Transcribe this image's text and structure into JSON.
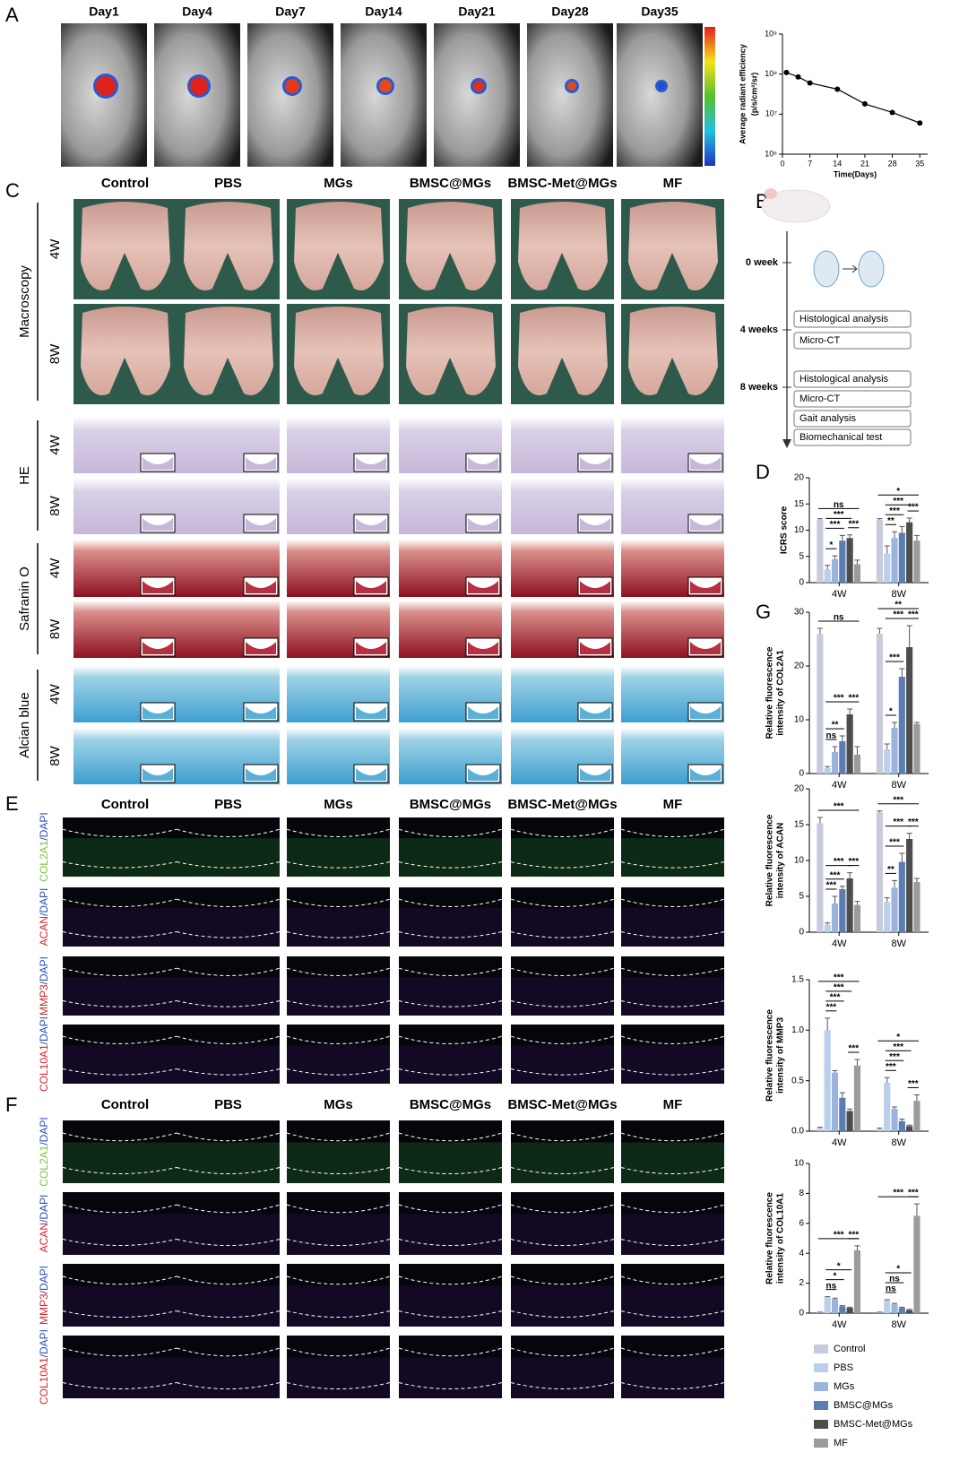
{
  "panel_labels": [
    "A",
    "B",
    "C",
    "D",
    "E",
    "F",
    "G"
  ],
  "groups": [
    {
      "name": "Control",
      "color": "#c8cbdc"
    },
    {
      "name": "PBS",
      "color": "#b9d0ea"
    },
    {
      "name": "MGs",
      "color": "#9cb4db"
    },
    {
      "name": "BMSC@MGs",
      "color": "#5a7db3"
    },
    {
      "name": "BMSC-Met@MGs",
      "color": "#4d4d4d"
    },
    {
      "name": "MF",
      "color": "#9b9b9b"
    }
  ],
  "imaging": {
    "days": [
      "Day1",
      "Day4",
      "Day7",
      "Day14",
      "Day21",
      "Day28",
      "Day35"
    ]
  },
  "histology": {
    "rows": [
      "Macroscopy",
      "HE",
      "Safranin O",
      "Alcian blue"
    ],
    "times": [
      "4W",
      "8W"
    ]
  },
  "stains": [
    {
      "marker": "COL2A1",
      "counter": "/DAPI",
      "color": "#7cc242"
    },
    {
      "marker": "ACAN",
      "counter": "/DAPI",
      "color": "#d9232a"
    },
    {
      "marker": "MMP3",
      "counter": "/DAPI",
      "color": "#d9232a"
    },
    {
      "marker": "COL10A1",
      "counter": "/DAPI",
      "color": "#d9232a"
    }
  ],
  "timeline": {
    "stages": [
      {
        "label": "0 week",
        "tasks": []
      },
      {
        "label": "4 weeks",
        "tasks": [
          "Histological analysis",
          "Micro-CT"
        ]
      },
      {
        "label": "8 weeks",
        "tasks": [
          "Histological analysis",
          "Micro-CT",
          "Gait analysis",
          "Biomechanical test"
        ]
      }
    ]
  },
  "chart_data": [
    {
      "type": "line",
      "ylabel": [
        "Average radiant efficiency",
        "(p/s/cm²/sr)"
      ],
      "xlabel": "Time(Days)",
      "x": [
        1,
        4,
        7,
        14,
        21,
        28,
        35
      ],
      "values": [
        110000000,
        85000000,
        60000000,
        42000000,
        18000000,
        11000000,
        6000000
      ],
      "xlim": [
        0,
        37
      ],
      "xticks": [
        0,
        7,
        14,
        21,
        28,
        35
      ],
      "ylim": [
        1000000,
        1000000000
      ],
      "log_y": true,
      "yticks": [
        {
          "value": 1000000,
          "label": "10⁶"
        },
        {
          "value": 10000000,
          "label": "10⁷"
        },
        {
          "value": 100000000,
          "label": "10⁸"
        },
        {
          "value": 1000000000,
          "label": "10⁹"
        }
      ],
      "color": "#000000"
    },
    {
      "type": "bar",
      "ylabel": [
        "ICRS score"
      ],
      "categories": [
        "4W",
        "8W"
      ],
      "ylim": [
        0,
        20
      ],
      "yticks": [
        0,
        5,
        10,
        15,
        20
      ],
      "series": [
        {
          "values": [
            12,
            12
          ],
          "errors": [
            0.2,
            0.2
          ]
        },
        {
          "values": [
            2.5,
            5.5
          ],
          "errors": [
            0.8,
            1.5
          ]
        },
        {
          "values": [
            4.5,
            8.5
          ],
          "errors": [
            0.6,
            1.2
          ]
        },
        {
          "values": [
            8,
            9.5
          ],
          "errors": [
            1,
            1.2
          ]
        },
        {
          "values": [
            8.5,
            11.5
          ],
          "errors": [
            0.6,
            0.8
          ]
        },
        {
          "values": [
            3.5,
            8
          ],
          "errors": [
            0.8,
            1
          ]
        }
      ],
      "annotations": [
        [
          "*",
          "***",
          "***",
          "ns",
          "***"
        ],
        [
          "**",
          "***",
          "***",
          "*",
          "***"
        ]
      ]
    },
    {
      "type": "bar",
      "ylabel": [
        "Relative fluorescence",
        "intensity of COL2A1"
      ],
      "categories": [
        "4W",
        "8W"
      ],
      "ylim": [
        0,
        30
      ],
      "yticks": [
        0,
        10,
        20,
        30
      ],
      "series": [
        {
          "values": [
            26,
            26
          ],
          "errors": [
            1,
            1
          ]
        },
        {
          "values": [
            1,
            4.5
          ],
          "errors": [
            0.3,
            1
          ]
        },
        {
          "values": [
            4,
            8.5
          ],
          "errors": [
            1,
            1
          ]
        },
        {
          "values": [
            6,
            18
          ],
          "errors": [
            1,
            1.5
          ]
        },
        {
          "values": [
            11,
            23.5
          ],
          "errors": [
            1,
            4
          ]
        },
        {
          "values": [
            3.5,
            9.2
          ],
          "errors": [
            1.5,
            0.3
          ]
        }
      ],
      "annotations": [
        [
          "ns",
          "**",
          "***",
          "ns",
          "***"
        ],
        [
          "*",
          "***",
          "***",
          "**",
          "***"
        ]
      ]
    },
    {
      "type": "bar",
      "ylabel": [
        "Relative fluorescence",
        "intensity of ACAN"
      ],
      "categories": [
        "4W",
        "8W"
      ],
      "ylim": [
        0,
        20
      ],
      "yticks": [
        0,
        5,
        10,
        15,
        20
      ],
      "series": [
        {
          "values": [
            15.2,
            16.7
          ],
          "errors": [
            0.8,
            0.2
          ]
        },
        {
          "values": [
            1,
            4.2
          ],
          "errors": [
            0.3,
            0.6
          ]
        },
        {
          "values": [
            4,
            6.2
          ],
          "errors": [
            1,
            1
          ]
        },
        {
          "values": [
            6,
            9.8
          ],
          "errors": [
            0.4,
            1.2
          ]
        },
        {
          "values": [
            7.5,
            13
          ],
          "errors": [
            0.8,
            0.8
          ]
        },
        {
          "values": [
            3.8,
            7
          ],
          "errors": [
            0.5,
            0.5
          ]
        }
      ],
      "annotations": [
        [
          "***",
          "***",
          "***",
          "***",
          "***"
        ],
        [
          "**",
          "***",
          "***",
          "***",
          "***"
        ]
      ]
    },
    {
      "type": "bar",
      "ylabel": [
        "Relative fluorescence",
        "intensity of MMP3"
      ],
      "categories": [
        "4W",
        "8W"
      ],
      "ylim": [
        0,
        1.5
      ],
      "yticks": [
        {
          "value": 0,
          "label": "0.0"
        },
        0.5,
        {
          "value": 1,
          "label": "1.0"
        },
        1.5
      ],
      "series": [
        {
          "values": [
            0.03,
            0.02
          ],
          "errors": [
            0.01,
            0.01
          ]
        },
        {
          "values": [
            1,
            0.48
          ],
          "errors": [
            0.12,
            0.05
          ]
        },
        {
          "values": [
            0.58,
            0.22
          ],
          "errors": [
            0.02,
            0.02
          ]
        },
        {
          "values": [
            0.33,
            0.1
          ],
          "errors": [
            0.05,
            0.02
          ]
        },
        {
          "values": [
            0.2,
            0.05
          ],
          "errors": [
            0.02,
            0.01
          ]
        },
        {
          "values": [
            0.65,
            0.3
          ],
          "errors": [
            0.06,
            0.06
          ]
        }
      ],
      "annotations": [
        [
          "***",
          "***",
          "***",
          "***",
          "***"
        ],
        [
          "***",
          "***",
          "***",
          "*",
          "***"
        ]
      ]
    },
    {
      "type": "bar",
      "ylabel": [
        "Relative fluorescence",
        "intensity of COL10A1"
      ],
      "categories": [
        "4W",
        "8W"
      ],
      "ylim": [
        0,
        10
      ],
      "yticks": [
        0,
        2,
        4,
        6,
        8,
        10
      ],
      "series": [
        {
          "values": [
            0.05,
            0.05
          ],
          "errors": [
            0.02,
            0.02
          ]
        },
        {
          "values": [
            1.05,
            0.85
          ],
          "errors": [
            0.05,
            0.05
          ]
        },
        {
          "values": [
            0.95,
            0.6
          ],
          "errors": [
            0.05,
            0.05
          ]
        },
        {
          "values": [
            0.45,
            0.35
          ],
          "errors": [
            0.05,
            0.05
          ]
        },
        {
          "values": [
            0.35,
            0.2
          ],
          "errors": [
            0.05,
            0.05
          ]
        },
        {
          "values": [
            4.2,
            6.5
          ],
          "errors": [
            0.3,
            0.8
          ]
        }
      ],
      "annotations": [
        [
          "ns",
          "*",
          "*",
          "***",
          "***"
        ],
        [
          "ns",
          "ns",
          "*",
          "***",
          "***"
        ]
      ]
    }
  ]
}
